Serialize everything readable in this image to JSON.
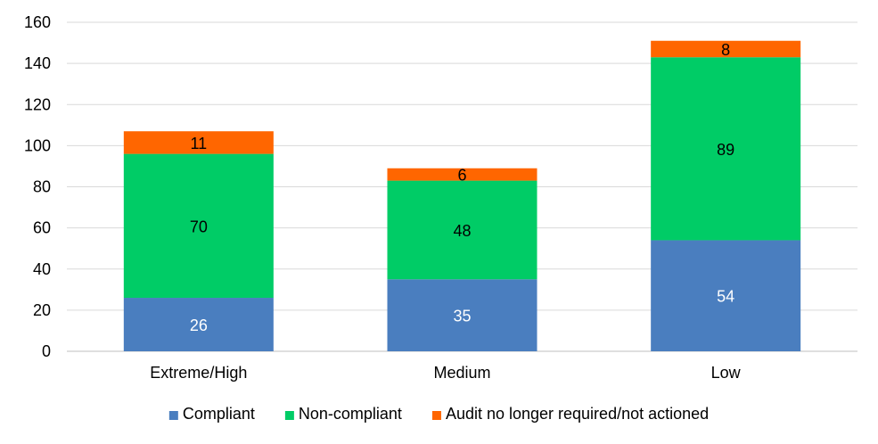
{
  "chart_data": {
    "type": "bar",
    "stacked": true,
    "categories": [
      "Extreme/High",
      "Medium",
      "Low"
    ],
    "series": [
      {
        "name": "Compliant",
        "values": [
          26,
          35,
          54
        ],
        "color": "#4a7ebf",
        "label_color": "#ffffff"
      },
      {
        "name": "Non-compliant",
        "values": [
          70,
          48,
          89
        ],
        "color": "#00cc66",
        "label_color": "#000000"
      },
      {
        "name": "Audit no longer required/not actioned",
        "values": [
          11,
          6,
          8
        ],
        "color": "#ff6600",
        "label_color": "#000000"
      }
    ],
    "ylim": [
      0,
      160
    ],
    "yticks": [
      0,
      20,
      40,
      60,
      80,
      100,
      120,
      140,
      160
    ],
    "grid": true,
    "legend_position": "bottom"
  }
}
